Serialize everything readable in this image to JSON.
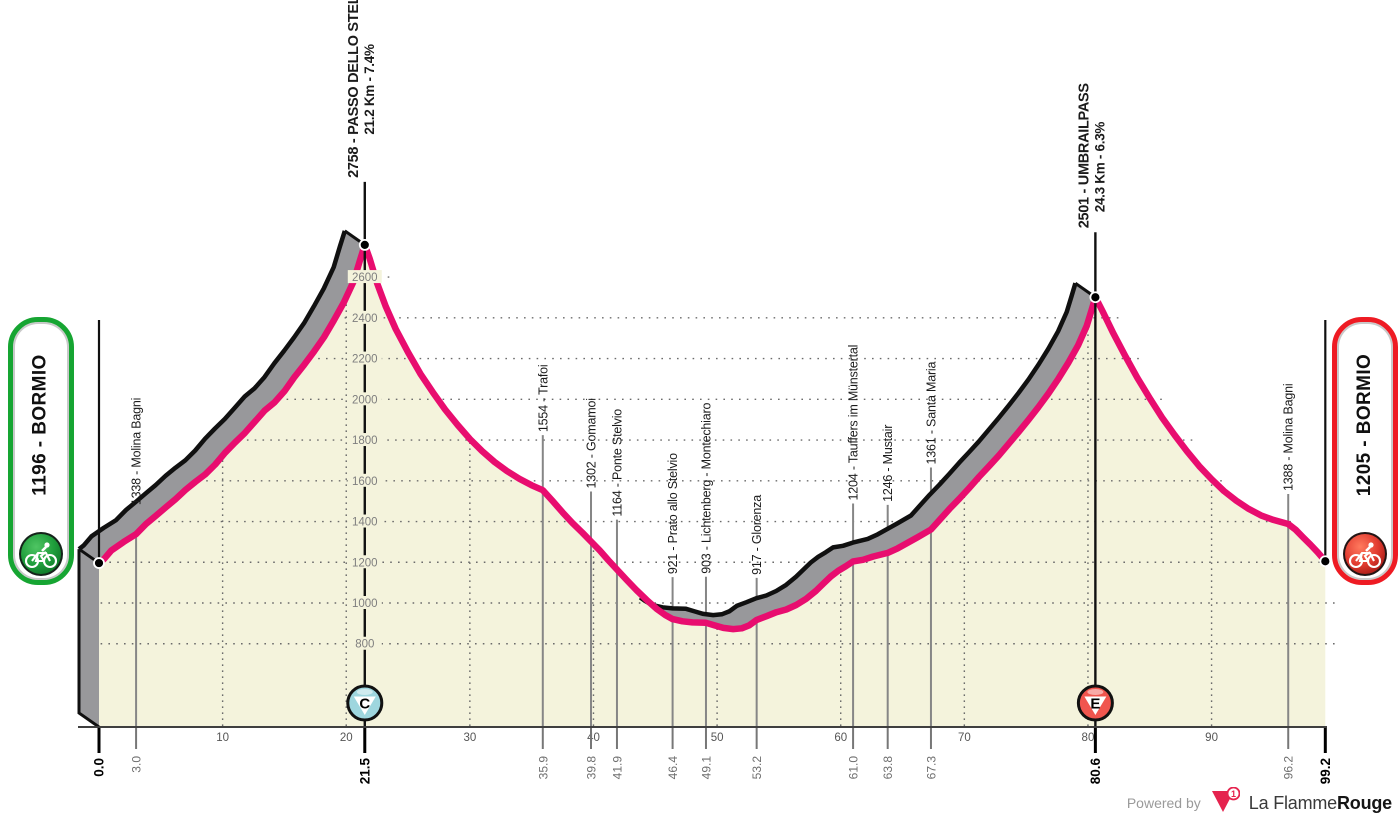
{
  "start_badge": {
    "label": "1196 - BORMIO",
    "color": "#16a532"
  },
  "finish_badge": {
    "label": "1205 - BORMIO",
    "color": "#ee1b23"
  },
  "footer": {
    "powered_by": "Powered by",
    "brand_regular": "La Flamme",
    "brand_bold": "Rouge",
    "logo_number": "1"
  },
  "chart_data": {
    "type": "area",
    "x_unit": "km",
    "y_unit": "m",
    "x_range": [
      0,
      99.2
    ],
    "start": {
      "km": 0.0,
      "elevation": 1196,
      "name": "BORMIO"
    },
    "finish": {
      "km": 99.2,
      "elevation": 1205,
      "name": "BORMIO"
    },
    "peaks": [
      {
        "km": 21.5,
        "elevation": 2758,
        "name": "2758 - PASSO DELLO STELVIO",
        "stats": "21.2 Km - 7.4%",
        "marker": "C",
        "marker_fill": "#9ed6de",
        "leader": 63
      },
      {
        "km": 80.6,
        "elevation": 2501,
        "name": "2501 - UMBRAILPASS",
        "stats": "24.3 Km - 6.3%",
        "marker": "E",
        "marker_fill": "#f0554e",
        "leader": 65
      }
    ],
    "waypoints": [
      {
        "km": 3.0,
        "elevation": 1338,
        "name": "Molina Bagni",
        "leader": 26
      },
      {
        "km": 35.9,
        "elevation": 1554,
        "name": "Trafoi",
        "leader": 55
      },
      {
        "km": 39.8,
        "elevation": 1302,
        "name": "Gomamoi",
        "leader": 50
      },
      {
        "km": 41.9,
        "elevation": 1164,
        "name": "Ponte Stelvio",
        "leader": 50
      },
      {
        "km": 46.4,
        "elevation": 921,
        "name": "Prato allo Stelvio",
        "leader": 42
      },
      {
        "km": 49.1,
        "elevation": 903,
        "name": "Lichtenberg - Montechiaro",
        "leader": 46
      },
      {
        "km": 53.2,
        "elevation": 917,
        "name": "Glorenza",
        "leader": 42
      },
      {
        "km": 61.0,
        "elevation": 1204,
        "name": "Tauffers im Münstertal",
        "leader": 58
      },
      {
        "km": 63.8,
        "elevation": 1246,
        "name": "Mustair",
        "leader": 48
      },
      {
        "km": 67.3,
        "elevation": 1361,
        "name": "Santa Maria",
        "leader": 62
      },
      {
        "km": 96.2,
        "elevation": 1388,
        "name": "Molina Bagni",
        "leader": 30
      }
    ],
    "km_labels": [
      {
        "km": 0.0,
        "label": "0.0",
        "major": true
      },
      {
        "km": 3.0,
        "label": "3.0"
      },
      {
        "km": 21.5,
        "label": "21.5",
        "major": true
      },
      {
        "km": 35.9,
        "label": "35.9"
      },
      {
        "km": 39.8,
        "label": "39.8"
      },
      {
        "km": 41.9,
        "label": "41.9"
      },
      {
        "km": 46.4,
        "label": "46.4"
      },
      {
        "km": 49.1,
        "label": "49.1"
      },
      {
        "km": 53.2,
        "label": "53.2"
      },
      {
        "km": 61.0,
        "label": "61.0"
      },
      {
        "km": 63.8,
        "label": "63.8"
      },
      {
        "km": 67.3,
        "label": "67.3"
      },
      {
        "km": 80.6,
        "label": "80.6",
        "major": true
      },
      {
        "km": 96.2,
        "label": "96.2"
      },
      {
        "km": 99.2,
        "label": "99.2",
        "major": true
      }
    ],
    "axis_km_ticks": [
      10,
      20,
      30,
      40,
      50,
      60,
      70,
      80,
      90
    ],
    "y_gridlines": [
      800,
      1000,
      1200,
      1400,
      1600,
      1800,
      2000,
      2200,
      2400,
      2600
    ],
    "band_segments": [
      [
        0,
        21.5
      ],
      [
        45.4,
        80.6
      ]
    ],
    "profile": [
      [
        0,
        1196
      ],
      [
        0.4,
        1215
      ],
      [
        1,
        1258
      ],
      [
        2,
        1300
      ],
      [
        3,
        1338
      ],
      [
        3.8,
        1388
      ],
      [
        4.6,
        1428
      ],
      [
        5.4,
        1470
      ],
      [
        6.2,
        1510
      ],
      [
        7,
        1555
      ],
      [
        7.8,
        1595
      ],
      [
        8.6,
        1632
      ],
      [
        9.4,
        1680
      ],
      [
        10.2,
        1738
      ],
      [
        11,
        1788
      ],
      [
        11.8,
        1835
      ],
      [
        12.6,
        1890
      ],
      [
        13.4,
        1945
      ],
      [
        14.2,
        1985
      ],
      [
        15,
        2040
      ],
      [
        15.8,
        2108
      ],
      [
        16.6,
        2170
      ],
      [
        17.4,
        2235
      ],
      [
        18.2,
        2305
      ],
      [
        19,
        2388
      ],
      [
        19.8,
        2475
      ],
      [
        20.6,
        2580
      ],
      [
        21.1,
        2680
      ],
      [
        21.5,
        2758
      ],
      [
        21.9,
        2690
      ],
      [
        22.5,
        2570
      ],
      [
        23.2,
        2455
      ],
      [
        24,
        2345
      ],
      [
        25,
        2230
      ],
      [
        26,
        2125
      ],
      [
        27,
        2035
      ],
      [
        28,
        1950
      ],
      [
        29,
        1875
      ],
      [
        30,
        1805
      ],
      [
        31,
        1745
      ],
      [
        32,
        1692
      ],
      [
        33,
        1648
      ],
      [
        34,
        1610
      ],
      [
        35,
        1578
      ],
      [
        35.9,
        1554
      ],
      [
        36.7,
        1500
      ],
      [
        37.5,
        1445
      ],
      [
        38.3,
        1392
      ],
      [
        39.1,
        1345
      ],
      [
        39.8,
        1302
      ],
      [
        40.5,
        1258
      ],
      [
        41.2,
        1210
      ],
      [
        41.9,
        1164
      ],
      [
        42.7,
        1112
      ],
      [
        43.5,
        1062
      ],
      [
        44.3,
        1015
      ],
      [
        45.1,
        972
      ],
      [
        45.8,
        941
      ],
      [
        46.4,
        921
      ],
      [
        47.2,
        910
      ],
      [
        48,
        905
      ],
      [
        49.1,
        903
      ],
      [
        49.8,
        890
      ],
      [
        50.5,
        878
      ],
      [
        51.3,
        872
      ],
      [
        52,
        876
      ],
      [
        52.6,
        890
      ],
      [
        53.2,
        917
      ],
      [
        54,
        935
      ],
      [
        54.8,
        955
      ],
      [
        55.6,
        968
      ],
      [
        56.4,
        990
      ],
      [
        57.2,
        1020
      ],
      [
        58,
        1060
      ],
      [
        58.6,
        1095
      ],
      [
        59.2,
        1130
      ],
      [
        59.8,
        1158
      ],
      [
        60.4,
        1180
      ],
      [
        61,
        1204
      ],
      [
        61.8,
        1212
      ],
      [
        62.6,
        1228
      ],
      [
        63.8,
        1246
      ],
      [
        64.6,
        1268
      ],
      [
        65.4,
        1295
      ],
      [
        66.2,
        1322
      ],
      [
        67.3,
        1361
      ],
      [
        68,
        1408
      ],
      [
        68.8,
        1462
      ],
      [
        69.6,
        1512
      ],
      [
        70.4,
        1565
      ],
      [
        71.2,
        1620
      ],
      [
        72,
        1672
      ],
      [
        72.8,
        1725
      ],
      [
        73.6,
        1782
      ],
      [
        74.4,
        1840
      ],
      [
        75.2,
        1900
      ],
      [
        76,
        1962
      ],
      [
        76.8,
        2028
      ],
      [
        77.6,
        2100
      ],
      [
        78.4,
        2178
      ],
      [
        79.2,
        2265
      ],
      [
        79.9,
        2360
      ],
      [
        80.3,
        2440
      ],
      [
        80.6,
        2501
      ],
      [
        81.2,
        2430
      ],
      [
        82,
        2330
      ],
      [
        83,
        2215
      ],
      [
        84,
        2105
      ],
      [
        85,
        2005
      ],
      [
        86,
        1910
      ],
      [
        87,
        1825
      ],
      [
        88,
        1745
      ],
      [
        89,
        1672
      ],
      [
        90,
        1608
      ],
      [
        91,
        1550
      ],
      [
        92,
        1502
      ],
      [
        93,
        1462
      ],
      [
        94,
        1430
      ],
      [
        95,
        1408
      ],
      [
        96.2,
        1388
      ],
      [
        96.8,
        1360
      ],
      [
        97.4,
        1322
      ],
      [
        98,
        1286
      ],
      [
        98.6,
        1248
      ],
      [
        99.2,
        1205
      ]
    ],
    "colors": {
      "pink": "#e80d6f",
      "cream": "#f4f3dc",
      "band_gray": "#98989b",
      "edge_black": "#101010",
      "grid": "#6b6b6b",
      "axis": "#3f3f3f",
      "minor_line": "#868686",
      "text_dark": "#1b1b1b",
      "text_gray": "#6e6e6e",
      "elev_label": "#7e7e7e"
    }
  }
}
